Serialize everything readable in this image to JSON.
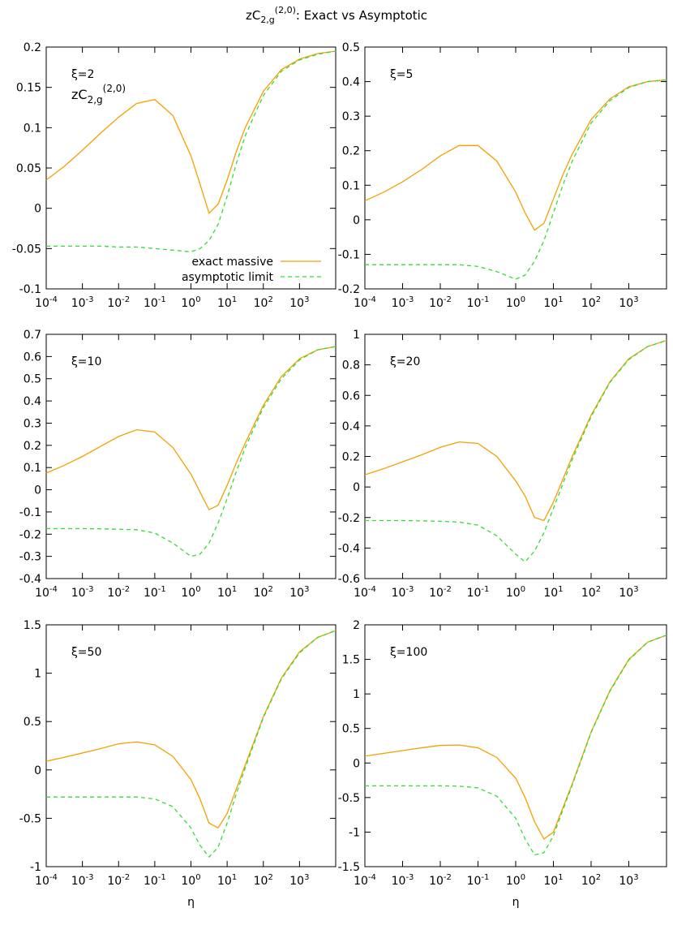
{
  "title": {
    "base": "zC",
    "sub": "2,g",
    "sup": "(2,0)",
    "text": ": Exact vs Asymptotic"
  },
  "chart_data": [
    {
      "type": "line",
      "annotation": "ξ=2",
      "formula": {
        "base": "zC",
        "sub": "2,g",
        "sup": "(2,0)"
      },
      "legend": "bottom-right",
      "xscale": "log",
      "xlim": [
        0.0001,
        10000
      ],
      "xticks": [
        {
          "value": 0.0001,
          "label": {
            "base": "10",
            "exp": "-4"
          }
        },
        {
          "value": 0.001,
          "label": {
            "base": "10",
            "exp": "-3"
          }
        },
        {
          "value": 0.01,
          "label": {
            "base": "10",
            "exp": "-2"
          }
        },
        {
          "value": 0.1,
          "label": {
            "base": "10",
            "exp": "-1"
          }
        },
        {
          "value": 1,
          "label": {
            "base": "10",
            "exp": "0"
          }
        },
        {
          "value": 10,
          "label": {
            "base": "10",
            "exp": "1"
          }
        },
        {
          "value": 100,
          "label": {
            "base": "10",
            "exp": "2"
          }
        },
        {
          "value": 1000,
          "label": {
            "base": "10",
            "exp": "3"
          }
        }
      ],
      "ylim": [
        -0.1,
        0.2
      ],
      "yticks": [
        -0.1,
        -0.05,
        0,
        0.05,
        0.1,
        0.15,
        0.2
      ],
      "x": [
        0.0001,
        0.000316,
        0.001,
        0.00316,
        0.01,
        0.0316,
        0.1,
        0.316,
        1,
        1.78,
        3.16,
        5.62,
        10,
        17.8,
        31.6,
        100,
        316,
        1000,
        3162,
        10000
      ],
      "series": [
        {
          "name": "exact massive",
          "color": "#f5a000",
          "dash": false,
          "values": [
            0.035,
            0.052,
            0.072,
            0.093,
            0.113,
            0.13,
            0.135,
            0.115,
            0.065,
            0.03,
            -0.006,
            0.005,
            0.035,
            0.07,
            0.1,
            0.145,
            0.172,
            0.185,
            0.192,
            0.195
          ]
        },
        {
          "name": "asymptotic limit",
          "color": "#33dd33",
          "dash": true,
          "values": [
            -0.047,
            -0.047,
            -0.047,
            -0.047,
            -0.048,
            -0.048,
            -0.05,
            -0.052,
            -0.054,
            -0.05,
            -0.04,
            -0.02,
            0.015,
            0.055,
            0.09,
            0.14,
            0.17,
            0.184,
            0.191,
            0.195
          ]
        }
      ]
    },
    {
      "type": "line",
      "annotation": "ξ=5",
      "xscale": "log",
      "xlim": [
        0.0001,
        10000
      ],
      "xticks": [
        {
          "value": 0.0001,
          "label": {
            "base": "10",
            "exp": "-4"
          }
        },
        {
          "value": 0.001,
          "label": {
            "base": "10",
            "exp": "-3"
          }
        },
        {
          "value": 0.01,
          "label": {
            "base": "10",
            "exp": "-2"
          }
        },
        {
          "value": 0.1,
          "label": {
            "base": "10",
            "exp": "-1"
          }
        },
        {
          "value": 1,
          "label": {
            "base": "10",
            "exp": "0"
          }
        },
        {
          "value": 10,
          "label": {
            "base": "10",
            "exp": "1"
          }
        },
        {
          "value": 100,
          "label": {
            "base": "10",
            "exp": "2"
          }
        },
        {
          "value": 1000,
          "label": {
            "base": "10",
            "exp": "3"
          }
        }
      ],
      "ylim": [
        -0.2,
        0.5
      ],
      "yticks": [
        -0.2,
        -0.1,
        0,
        0.1,
        0.2,
        0.3,
        0.4,
        0.5
      ],
      "x": [
        0.0001,
        0.000316,
        0.001,
        0.00316,
        0.01,
        0.0316,
        0.1,
        0.316,
        1,
        1.78,
        3.16,
        5.62,
        10,
        17.8,
        31.6,
        100,
        316,
        1000,
        3162,
        10000
      ],
      "series": [
        {
          "color": "#f5a000",
          "dash": false,
          "values": [
            0.055,
            0.08,
            0.11,
            0.145,
            0.185,
            0.215,
            0.215,
            0.17,
            0.08,
            0.02,
            -0.03,
            -0.01,
            0.06,
            0.13,
            0.19,
            0.29,
            0.35,
            0.385,
            0.4,
            0.405
          ]
        },
        {
          "color": "#33dd33",
          "dash": true,
          "values": [
            -0.13,
            -0.13,
            -0.13,
            -0.13,
            -0.13,
            -0.13,
            -0.135,
            -0.15,
            -0.172,
            -0.16,
            -0.12,
            -0.06,
            0.02,
            0.1,
            0.17,
            0.28,
            0.345,
            0.383,
            0.4,
            0.405
          ]
        }
      ]
    },
    {
      "type": "line",
      "annotation": "ξ=10",
      "xscale": "log",
      "xlim": [
        0.0001,
        10000
      ],
      "xticks": [
        {
          "value": 0.0001,
          "label": {
            "base": "10",
            "exp": "-4"
          }
        },
        {
          "value": 0.001,
          "label": {
            "base": "10",
            "exp": "-3"
          }
        },
        {
          "value": 0.01,
          "label": {
            "base": "10",
            "exp": "-2"
          }
        },
        {
          "value": 0.1,
          "label": {
            "base": "10",
            "exp": "-1"
          }
        },
        {
          "value": 1,
          "label": {
            "base": "10",
            "exp": "0"
          }
        },
        {
          "value": 10,
          "label": {
            "base": "10",
            "exp": "1"
          }
        },
        {
          "value": 100,
          "label": {
            "base": "10",
            "exp": "2"
          }
        },
        {
          "value": 1000,
          "label": {
            "base": "10",
            "exp": "3"
          }
        }
      ],
      "ylim": [
        -0.4,
        0.7
      ],
      "yticks": [
        -0.4,
        -0.3,
        -0.2,
        -0.1,
        0,
        0.1,
        0.2,
        0.3,
        0.4,
        0.5,
        0.6,
        0.7
      ],
      "x": [
        0.0001,
        0.000316,
        0.001,
        0.00316,
        0.01,
        0.0316,
        0.1,
        0.316,
        1,
        1.78,
        3.16,
        5.62,
        10,
        17.8,
        31.6,
        100,
        316,
        1000,
        3162,
        10000
      ],
      "series": [
        {
          "color": "#f5a000",
          "dash": false,
          "values": [
            0.075,
            0.11,
            0.15,
            0.195,
            0.24,
            0.27,
            0.26,
            0.19,
            0.07,
            -0.01,
            -0.09,
            -0.07,
            0.02,
            0.12,
            0.21,
            0.38,
            0.51,
            0.59,
            0.63,
            0.645
          ]
        },
        {
          "color": "#33dd33",
          "dash": true,
          "values": [
            -0.175,
            -0.175,
            -0.175,
            -0.176,
            -0.178,
            -0.18,
            -0.195,
            -0.24,
            -0.3,
            -0.29,
            -0.24,
            -0.15,
            -0.04,
            0.08,
            0.19,
            0.37,
            0.5,
            0.585,
            0.63,
            0.645
          ]
        }
      ]
    },
    {
      "type": "line",
      "annotation": "ξ=20",
      "xscale": "log",
      "xlim": [
        0.0001,
        10000
      ],
      "xticks": [
        {
          "value": 0.0001,
          "label": {
            "base": "10",
            "exp": "-4"
          }
        },
        {
          "value": 0.001,
          "label": {
            "base": "10",
            "exp": "-3"
          }
        },
        {
          "value": 0.01,
          "label": {
            "base": "10",
            "exp": "-2"
          }
        },
        {
          "value": 0.1,
          "label": {
            "base": "10",
            "exp": "-1"
          }
        },
        {
          "value": 1,
          "label": {
            "base": "10",
            "exp": "0"
          }
        },
        {
          "value": 10,
          "label": {
            "base": "10",
            "exp": "1"
          }
        },
        {
          "value": 100,
          "label": {
            "base": "10",
            "exp": "2"
          }
        },
        {
          "value": 1000,
          "label": {
            "base": "10",
            "exp": "3"
          }
        }
      ],
      "ylim": [
        -0.6,
        1
      ],
      "yticks": [
        -0.6,
        -0.4,
        -0.2,
        0,
        0.2,
        0.4,
        0.6,
        0.8,
        1
      ],
      "x": [
        0.0001,
        0.000316,
        0.001,
        0.00316,
        0.01,
        0.0316,
        0.1,
        0.316,
        1,
        1.78,
        3.16,
        5.62,
        10,
        17.8,
        31.6,
        100,
        316,
        1000,
        3162,
        10000
      ],
      "series": [
        {
          "color": "#f5a000",
          "dash": false,
          "values": [
            0.08,
            0.12,
            0.165,
            0.21,
            0.26,
            0.295,
            0.285,
            0.2,
            0.04,
            -0.06,
            -0.2,
            -0.22,
            -0.1,
            0.05,
            0.2,
            0.47,
            0.69,
            0.84,
            0.92,
            0.96
          ]
        },
        {
          "color": "#33dd33",
          "dash": true,
          "values": [
            -0.22,
            -0.22,
            -0.22,
            -0.222,
            -0.225,
            -0.23,
            -0.25,
            -0.32,
            -0.44,
            -0.49,
            -0.42,
            -0.3,
            -0.14,
            0.02,
            0.18,
            0.46,
            0.685,
            0.835,
            0.92,
            0.96
          ]
        }
      ]
    },
    {
      "type": "line",
      "annotation": "ξ=50",
      "xlabel": "η",
      "xscale": "log",
      "xlim": [
        0.0001,
        10000
      ],
      "xticks": [
        {
          "value": 0.0001,
          "label": {
            "base": "10",
            "exp": "-4"
          }
        },
        {
          "value": 0.001,
          "label": {
            "base": "10",
            "exp": "-3"
          }
        },
        {
          "value": 0.01,
          "label": {
            "base": "10",
            "exp": "-2"
          }
        },
        {
          "value": 0.1,
          "label": {
            "base": "10",
            "exp": "-1"
          }
        },
        {
          "value": 1,
          "label": {
            "base": "10",
            "exp": "0"
          }
        },
        {
          "value": 10,
          "label": {
            "base": "10",
            "exp": "1"
          }
        },
        {
          "value": 100,
          "label": {
            "base": "10",
            "exp": "2"
          }
        },
        {
          "value": 1000,
          "label": {
            "base": "10",
            "exp": "3"
          }
        }
      ],
      "ylim": [
        -1,
        1.5
      ],
      "yticks": [
        -1,
        -0.5,
        0,
        0.5,
        1,
        1.5
      ],
      "x": [
        0.0001,
        0.000316,
        0.001,
        0.00316,
        0.01,
        0.0316,
        0.1,
        0.316,
        1,
        1.78,
        3.16,
        5.62,
        10,
        17.8,
        31.6,
        100,
        316,
        1000,
        3162,
        10000
      ],
      "series": [
        {
          "color": "#f5a000",
          "dash": false,
          "values": [
            0.09,
            0.13,
            0.175,
            0.22,
            0.27,
            0.29,
            0.26,
            0.14,
            -0.1,
            -0.3,
            -0.55,
            -0.6,
            -0.45,
            -0.2,
            0.05,
            0.55,
            0.95,
            1.22,
            1.37,
            1.44
          ]
        },
        {
          "color": "#33dd33",
          "dash": true,
          "values": [
            -0.28,
            -0.28,
            -0.28,
            -0.28,
            -0.28,
            -0.28,
            -0.3,
            -0.38,
            -0.6,
            -0.78,
            -0.9,
            -0.8,
            -0.55,
            -0.25,
            0.02,
            0.54,
            0.94,
            1.21,
            1.37,
            1.44
          ]
        }
      ]
    },
    {
      "type": "line",
      "annotation": "ξ=100",
      "xlabel": "η",
      "xscale": "log",
      "xlim": [
        0.0001,
        10000
      ],
      "xticks": [
        {
          "value": 0.0001,
          "label": {
            "base": "10",
            "exp": "-4"
          }
        },
        {
          "value": 0.001,
          "label": {
            "base": "10",
            "exp": "-3"
          }
        },
        {
          "value": 0.01,
          "label": {
            "base": "10",
            "exp": "-2"
          }
        },
        {
          "value": 0.1,
          "label": {
            "base": "10",
            "exp": "-1"
          }
        },
        {
          "value": 1,
          "label": {
            "base": "10",
            "exp": "0"
          }
        },
        {
          "value": 10,
          "label": {
            "base": "10",
            "exp": "1"
          }
        },
        {
          "value": 100,
          "label": {
            "base": "10",
            "exp": "2"
          }
        },
        {
          "value": 1000,
          "label": {
            "base": "10",
            "exp": "3"
          }
        }
      ],
      "ylim": [
        -1.5,
        2
      ],
      "yticks": [
        -1.5,
        -1,
        -0.5,
        0,
        0.5,
        1,
        1.5,
        2
      ],
      "x": [
        0.0001,
        0.000316,
        0.001,
        0.00316,
        0.01,
        0.0316,
        0.1,
        0.316,
        1,
        1.78,
        3.16,
        5.62,
        10,
        17.8,
        31.6,
        100,
        316,
        1000,
        3162,
        10000
      ],
      "series": [
        {
          "color": "#f5a000",
          "dash": false,
          "values": [
            0.1,
            0.14,
            0.18,
            0.22,
            0.255,
            0.26,
            0.22,
            0.08,
            -0.22,
            -0.5,
            -0.85,
            -1.1,
            -1,
            -0.65,
            -0.3,
            0.45,
            1.05,
            1.5,
            1.75,
            1.85
          ]
        },
        {
          "color": "#33dd33",
          "dash": true,
          "values": [
            -0.33,
            -0.33,
            -0.33,
            -0.33,
            -0.33,
            -0.335,
            -0.36,
            -0.48,
            -0.8,
            -1.1,
            -1.33,
            -1.3,
            -1.05,
            -0.68,
            -0.32,
            0.44,
            1.04,
            1.49,
            1.75,
            1.85
          ]
        }
      ]
    }
  ]
}
